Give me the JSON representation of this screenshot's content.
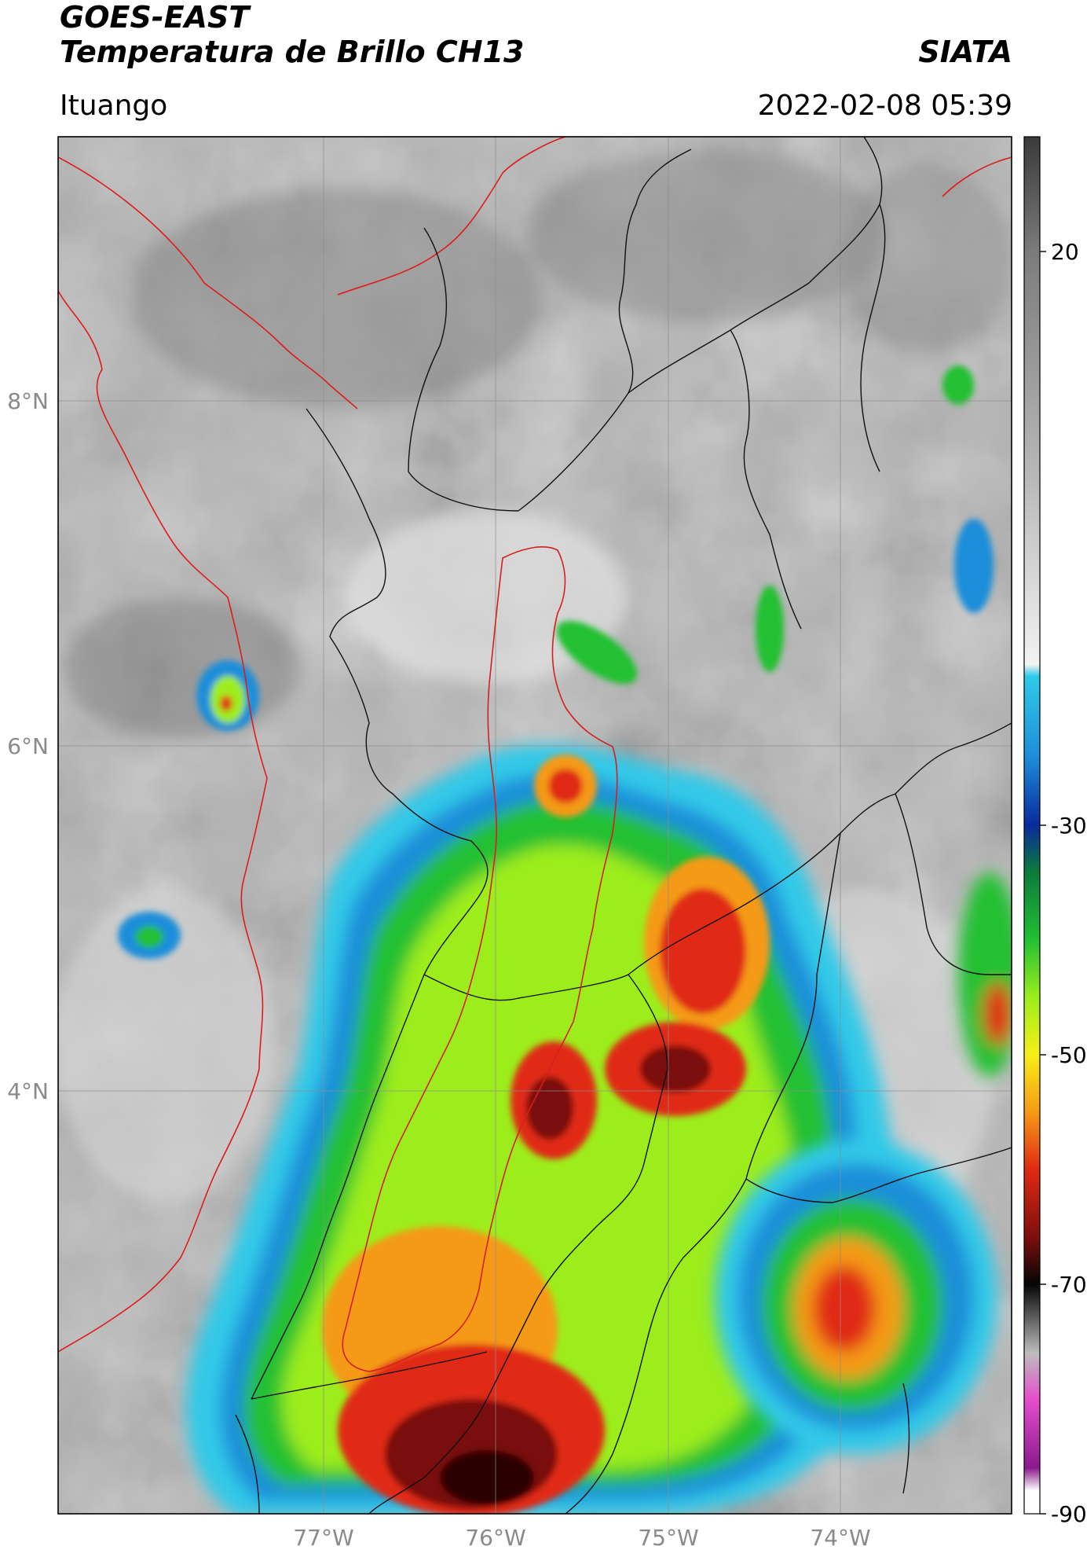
{
  "header": {
    "satellite": "GOES-EAST",
    "product": "Temperatura de Brillo CH13",
    "brand": "SIATA",
    "region": "Ituango",
    "timestamp": "2022-02-08 05:39"
  },
  "map": {
    "lon_labels": [
      "77°W",
      "76°W",
      "75°W",
      "74°W"
    ],
    "lat_labels": [
      "8°N",
      "6°N",
      "4°N"
    ]
  },
  "colorbar": {
    "labels": [
      "20",
      "-30",
      "-50",
      "-70",
      "-90"
    ],
    "stops": [
      {
        "v": 30,
        "c": "#3a3a3a"
      },
      {
        "v": 20,
        "c": "#7b7b7b"
      },
      {
        "v": 0,
        "c": "#b9b9b9"
      },
      {
        "v": -16,
        "c": "#f2f2f2"
      },
      {
        "v": -17,
        "c": "#30c9e8"
      },
      {
        "v": -24,
        "c": "#1f8ed9"
      },
      {
        "v": -30,
        "c": "#0a2a9c"
      },
      {
        "v": -34,
        "c": "#0c7a3c"
      },
      {
        "v": -40,
        "c": "#23c033"
      },
      {
        "v": -45,
        "c": "#9ded1d"
      },
      {
        "v": -50,
        "c": "#f7ee18"
      },
      {
        "v": -55,
        "c": "#f59a16"
      },
      {
        "v": -60,
        "c": "#e02a14"
      },
      {
        "v": -66,
        "c": "#7a0f0d"
      },
      {
        "v": -70,
        "c": "#050505"
      },
      {
        "v": -76,
        "c": "#bdbdbd"
      },
      {
        "v": -80,
        "c": "#e44fcc"
      },
      {
        "v": -86,
        "c": "#8a1a8c"
      },
      {
        "v": -88,
        "c": "#ffffff"
      },
      {
        "v": -90,
        "c": "#ffffff"
      }
    ],
    "vmax": 30,
    "vmin": -90
  }
}
